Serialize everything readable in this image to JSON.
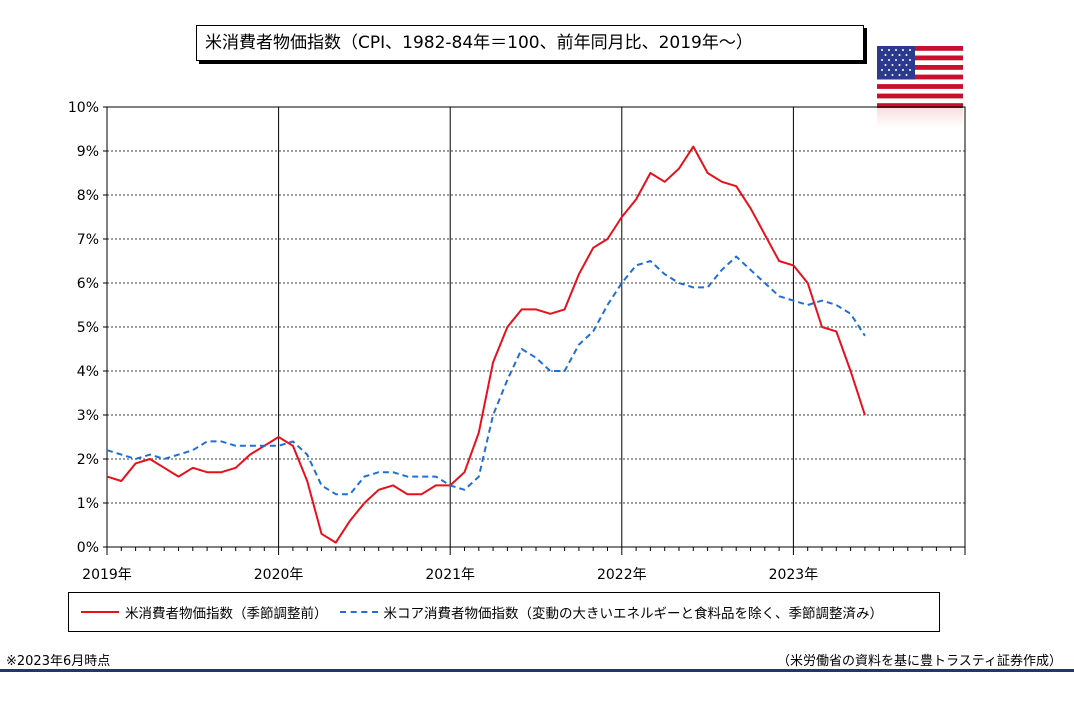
{
  "title": "米消費者物価指数（CPI、1982-84年＝100、前年同月比、2019年～）",
  "footnote": "※2023年6月時点",
  "source": "（米労働省の資料を基に豊トラスティ証券作成）",
  "colors": {
    "cpi": "#e8101a",
    "core": "#1f6fd6",
    "rule": "#1f3864"
  },
  "icons": {
    "flag": "us-flag-icon"
  },
  "chart_data": {
    "type": "line",
    "title": "米消費者物価指数（CPI、1982-84年＝100、前年同月比、2019年～）",
    "xlabel": "",
    "ylabel": "",
    "ylim": [
      0,
      10
    ],
    "yticks": [
      "0%",
      "1%",
      "2%",
      "3%",
      "4%",
      "5%",
      "6%",
      "7%",
      "8%",
      "9%",
      "10%"
    ],
    "xticks": [
      "2019年",
      "2020年",
      "2021年",
      "2022年",
      "2023年"
    ],
    "x_range": [
      "2019-01",
      "2023-12"
    ],
    "grid": true,
    "legend_position": "bottom",
    "x": [
      "2019-01",
      "2019-02",
      "2019-03",
      "2019-04",
      "2019-05",
      "2019-06",
      "2019-07",
      "2019-08",
      "2019-09",
      "2019-10",
      "2019-11",
      "2019-12",
      "2020-01",
      "2020-02",
      "2020-03",
      "2020-04",
      "2020-05",
      "2020-06",
      "2020-07",
      "2020-08",
      "2020-09",
      "2020-10",
      "2020-11",
      "2020-12",
      "2021-01",
      "2021-02",
      "2021-03",
      "2021-04",
      "2021-05",
      "2021-06",
      "2021-07",
      "2021-08",
      "2021-09",
      "2021-10",
      "2021-11",
      "2021-12",
      "2022-01",
      "2022-02",
      "2022-03",
      "2022-04",
      "2022-05",
      "2022-06",
      "2022-07",
      "2022-08",
      "2022-09",
      "2022-10",
      "2022-11",
      "2022-12",
      "2023-01",
      "2023-02",
      "2023-03",
      "2023-04",
      "2023-05",
      "2023-06"
    ],
    "series": [
      {
        "name": "米消費者物価指数（季節調整前）",
        "color": "#e8101a",
        "style": "solid",
        "values": [
          1.6,
          1.5,
          1.9,
          2.0,
          1.8,
          1.6,
          1.8,
          1.7,
          1.7,
          1.8,
          2.1,
          2.3,
          2.5,
          2.3,
          1.5,
          0.3,
          0.1,
          0.6,
          1.0,
          1.3,
          1.4,
          1.2,
          1.2,
          1.4,
          1.4,
          1.7,
          2.6,
          4.2,
          5.0,
          5.4,
          5.4,
          5.3,
          5.4,
          6.2,
          6.8,
          7.0,
          7.5,
          7.9,
          8.5,
          8.3,
          8.6,
          9.1,
          8.5,
          8.3,
          8.2,
          7.7,
          7.1,
          6.5,
          6.4,
          6.0,
          5.0,
          4.9,
          4.0,
          3.0
        ]
      },
      {
        "name": "米コア消費者物価指数（変動の大きいエネルギーと食料品を除く、季節調整済み）",
        "color": "#1f6fd6",
        "style": "dashed",
        "values": [
          2.2,
          2.1,
          2.0,
          2.1,
          2.0,
          2.1,
          2.2,
          2.4,
          2.4,
          2.3,
          2.3,
          2.3,
          2.3,
          2.4,
          2.1,
          1.4,
          1.2,
          1.2,
          1.6,
          1.7,
          1.7,
          1.6,
          1.6,
          1.6,
          1.4,
          1.3,
          1.6,
          3.0,
          3.8,
          4.5,
          4.3,
          4.0,
          4.0,
          4.6,
          4.9,
          5.5,
          6.0,
          6.4,
          6.5,
          6.2,
          6.0,
          5.9,
          5.9,
          6.3,
          6.6,
          6.3,
          6.0,
          5.7,
          5.6,
          5.5,
          5.6,
          5.5,
          5.3,
          4.8
        ]
      }
    ]
  }
}
